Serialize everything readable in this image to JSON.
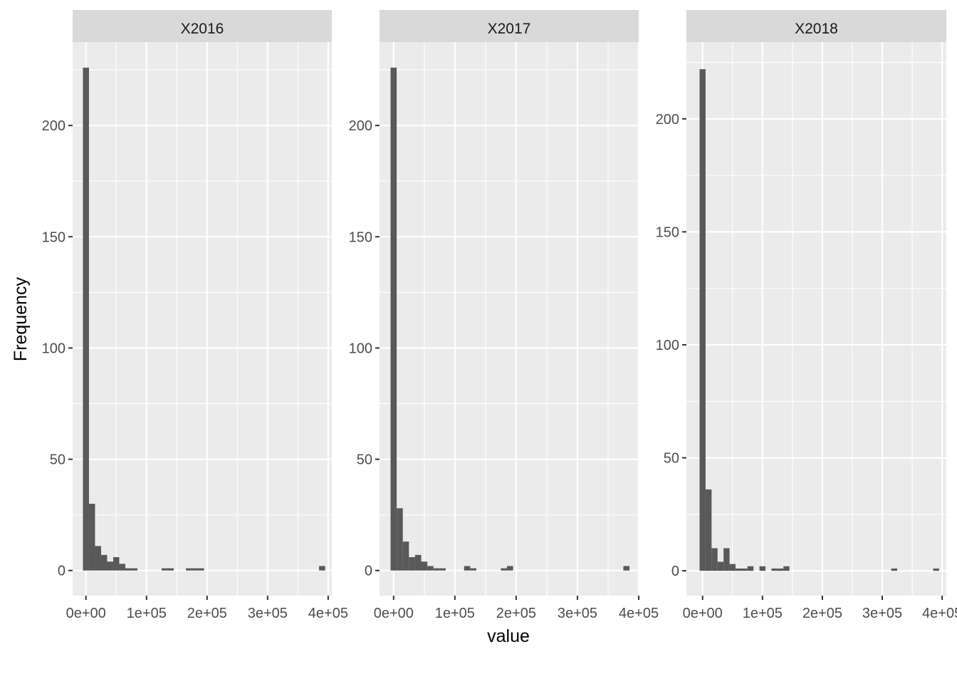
{
  "chart_data": {
    "type": "bar",
    "subtype": "faceted histogram",
    "xlabel": "value",
    "ylabel": "Frequency",
    "bin_width": 10000,
    "x_ticks": [
      "0e+00",
      "1e+05",
      "2e+05",
      "3e+05",
      "4e+05"
    ],
    "y_ticks": [
      "0",
      "50",
      "100",
      "150",
      "200"
    ],
    "legend": "none",
    "grid": true,
    "colors": {
      "bar": "#595959",
      "panel": "#ebebeb",
      "grid": "#ffffff",
      "strip": "#d9d9d9"
    },
    "facets": [
      {
        "name": "X2016",
        "xlim": [
          -22000,
          406000
        ],
        "ylim": [
          -11.3,
          237.5
        ],
        "bins": [
          [
            0,
            226
          ],
          [
            10000,
            30
          ],
          [
            20000,
            11
          ],
          [
            30000,
            7
          ],
          [
            40000,
            4
          ],
          [
            50000,
            6
          ],
          [
            60000,
            3
          ],
          [
            70000,
            1
          ],
          [
            80000,
            1
          ],
          [
            130000,
            1
          ],
          [
            140000,
            1
          ],
          [
            170000,
            1
          ],
          [
            180000,
            1
          ],
          [
            190000,
            1
          ],
          [
            390000,
            2
          ]
        ]
      },
      {
        "name": "X2017",
        "xlim": [
          -23000,
          400000
        ],
        "ylim": [
          -11.3,
          237.5
        ],
        "bins": [
          [
            0,
            226
          ],
          [
            10000,
            28
          ],
          [
            20000,
            13
          ],
          [
            30000,
            6
          ],
          [
            40000,
            7
          ],
          [
            50000,
            4
          ],
          [
            60000,
            2
          ],
          [
            70000,
            1
          ],
          [
            80000,
            1
          ],
          [
            120000,
            2
          ],
          [
            130000,
            1
          ],
          [
            180000,
            1
          ],
          [
            190000,
            2
          ],
          [
            380000,
            2
          ]
        ]
      },
      {
        "name": "X2018",
        "xlim": [
          -27000,
          407000
        ],
        "ylim": [
          -11,
          234
        ],
        "bins": [
          [
            0,
            222
          ],
          [
            10000,
            36
          ],
          [
            20000,
            10
          ],
          [
            30000,
            4
          ],
          [
            40000,
            10
          ],
          [
            50000,
            3
          ],
          [
            60000,
            1
          ],
          [
            70000,
            1
          ],
          [
            80000,
            2
          ],
          [
            100000,
            2
          ],
          [
            120000,
            1
          ],
          [
            130000,
            1
          ],
          [
            140000,
            2
          ],
          [
            320000,
            1
          ],
          [
            390000,
            1
          ]
        ]
      }
    ]
  }
}
